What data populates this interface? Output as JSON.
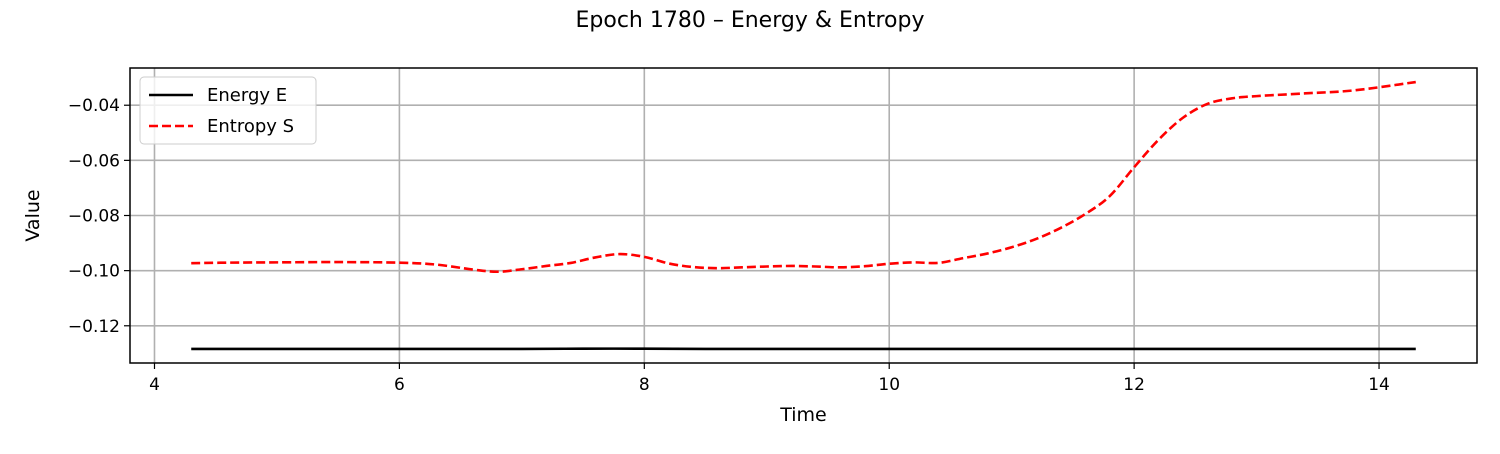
{
  "chart_data": {
    "type": "line",
    "title": "Epoch 1780 – Energy & Entropy",
    "xlabel": "Time",
    "ylabel": "Value",
    "xlim": [
      3.8,
      14.8
    ],
    "ylim": [
      -0.1335,
      -0.0265
    ],
    "grid": true,
    "legend_position": "upper left",
    "x_ticks": [
      4,
      6,
      8,
      10,
      12,
      14
    ],
    "x_tick_labels": [
      "4",
      "6",
      "8",
      "10",
      "12",
      "14"
    ],
    "y_ticks": [
      -0.04,
      -0.06,
      -0.08,
      -0.1,
      -0.12
    ],
    "y_tick_labels": [
      "−0.04",
      "−0.06",
      "−0.08",
      "−0.10",
      "−0.12"
    ],
    "series": [
      {
        "name": "Energy E",
        "color": "#000000",
        "style": "solid",
        "x": [
          4.3,
          5.0,
          6.0,
          7.0,
          7.5,
          8.0,
          8.5,
          9.0,
          10.0,
          11.0,
          12.0,
          13.0,
          14.0,
          14.3
        ],
        "y": [
          -0.1284,
          -0.1284,
          -0.1284,
          -0.1284,
          -0.1283,
          -0.1283,
          -0.1284,
          -0.1284,
          -0.1284,
          -0.1284,
          -0.1284,
          -0.1284,
          -0.1284,
          -0.1284
        ]
      },
      {
        "name": "Entropy S",
        "color": "#ff0000",
        "style": "dashed",
        "x": [
          4.3,
          4.6,
          5.0,
          5.5,
          6.0,
          6.3,
          6.6,
          6.8,
          7.0,
          7.2,
          7.4,
          7.6,
          7.8,
          8.0,
          8.2,
          8.4,
          8.6,
          8.8,
          9.0,
          9.2,
          9.4,
          9.6,
          9.8,
          10.0,
          10.2,
          10.4,
          10.6,
          10.8,
          11.0,
          11.2,
          11.4,
          11.6,
          11.8,
          12.0,
          12.2,
          12.4,
          12.6,
          12.8,
          13.0,
          13.4,
          13.8,
          14.3
        ],
        "y": [
          -0.0973,
          -0.0971,
          -0.097,
          -0.0969,
          -0.0971,
          -0.0978,
          -0.0996,
          -0.1004,
          -0.0995,
          -0.0983,
          -0.0972,
          -0.0952,
          -0.094,
          -0.095,
          -0.0974,
          -0.0987,
          -0.0991,
          -0.0988,
          -0.0985,
          -0.0983,
          -0.0985,
          -0.0988,
          -0.0984,
          -0.0975,
          -0.097,
          -0.0972,
          -0.0955,
          -0.0938,
          -0.0915,
          -0.0885,
          -0.0845,
          -0.0795,
          -0.073,
          -0.0625,
          -0.0525,
          -0.0445,
          -0.0395,
          -0.0375,
          -0.0367,
          -0.0357,
          -0.0346,
          -0.0316
        ]
      }
    ]
  }
}
